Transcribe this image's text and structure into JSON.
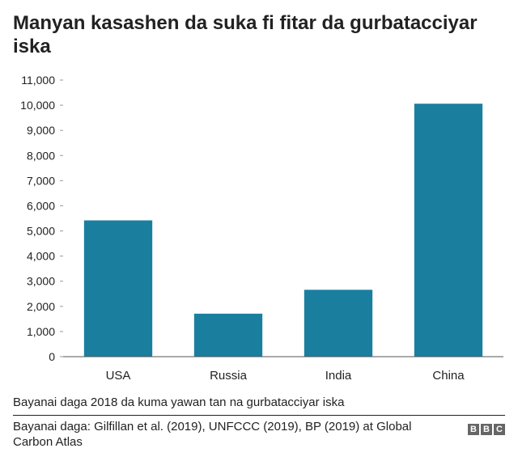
{
  "title": "Manyan kasashen da suka fi fitar da gurbatacciyar iska",
  "chart_data": {
    "type": "bar",
    "title": "Manyan kasashen da suka fi fitar da gurbatacciyar iska",
    "xlabel": "",
    "ylabel": "",
    "categories": [
      "USA",
      "Russia",
      "India",
      "China"
    ],
    "values": [
      5420,
      1710,
      2660,
      10060
    ],
    "ylim": [
      0,
      11000
    ],
    "yticks": [
      0,
      1000,
      2000,
      3000,
      4000,
      5000,
      6000,
      7000,
      8000,
      9000,
      10000,
      11000
    ],
    "ytick_labels": [
      "0",
      "1,000",
      "2,000",
      "3,000",
      "4,000",
      "5,000",
      "6,000",
      "7,000",
      "8,000",
      "9,000",
      "10,000",
      "11,000"
    ],
    "grid": false,
    "bar_color": "#1a7f9f"
  },
  "footnote": "Bayanai daga 2018 da kuma yawan tan na gurbatacciyar iska",
  "source": "Bayanai daga: Gilfillan et al. (2019), UNFCCC (2019), BP (2019) at Global Carbon Atlas",
  "logo": {
    "letters": [
      "B",
      "B",
      "C"
    ],
    "color": "#666666"
  }
}
